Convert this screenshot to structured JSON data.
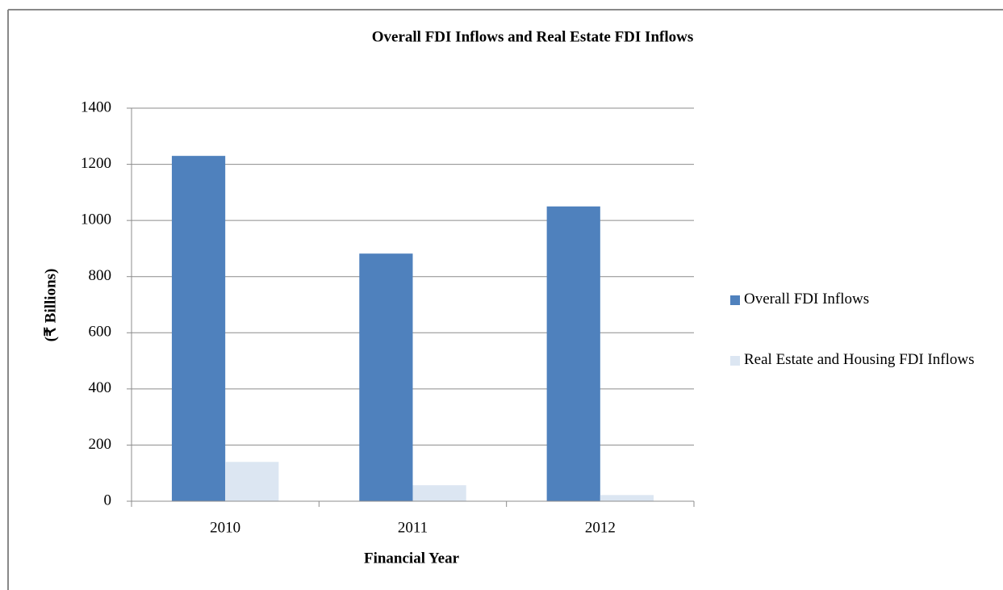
{
  "chart_data": {
    "type": "bar",
    "title": "Overall FDI Inflows and Real Estate FDI Inflows",
    "x_label": "Financial Year",
    "y_label": "(₹ Billions)",
    "categories": [
      "2010",
      "2011",
      "2012"
    ],
    "series": [
      {
        "name": "Overall FDI Inflows",
        "color": "#4f81bd",
        "values": [
          1230,
          882,
          1050
        ]
      },
      {
        "name": "Real Estate and Housing FDI Inflows",
        "color": "#dce6f2",
        "values": [
          140,
          57,
          22
        ]
      }
    ],
    "ylim": [
      0,
      1400
    ],
    "yticks": [
      0,
      200,
      400,
      600,
      800,
      1000,
      1200,
      1400
    ],
    "grid": true,
    "legend": "right"
  }
}
